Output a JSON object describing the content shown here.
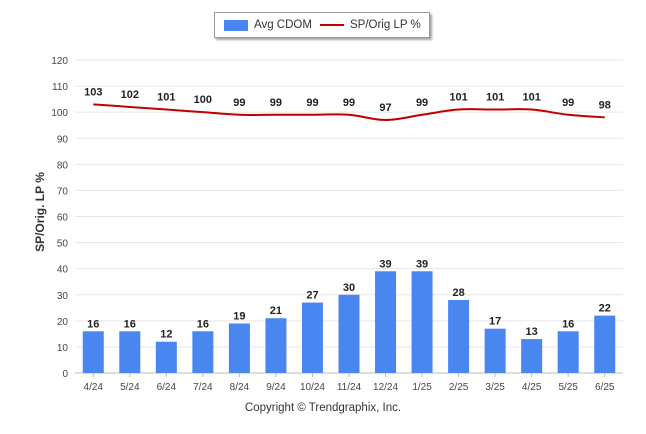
{
  "chart_data": {
    "type": "bar+line",
    "categories": [
      "4/24",
      "5/24",
      "6/24",
      "7/24",
      "8/24",
      "9/24",
      "10/24",
      "11/24",
      "12/24",
      "1/25",
      "2/25",
      "3/25",
      "4/25",
      "5/25",
      "6/25"
    ],
    "series": [
      {
        "name": "Avg CDOM",
        "type": "bar",
        "color": "#4a86f0",
        "values": [
          16,
          16,
          12,
          16,
          19,
          21,
          27,
          30,
          39,
          39,
          28,
          17,
          13,
          16,
          22
        ]
      },
      {
        "name": "SP/Orig LP %",
        "type": "line",
        "color": "#c00000",
        "values": [
          103,
          102,
          101,
          100,
          99,
          99,
          99,
          99,
          97,
          99,
          101,
          101,
          101,
          99,
          98
        ]
      }
    ],
    "ylabel": "SP/Orig. LP %",
    "ylim": [
      0,
      120
    ],
    "yticks": [
      "0",
      "10",
      "20",
      "30",
      "40",
      "50",
      "60",
      "70",
      "80",
      "90",
      "100",
      "110",
      "120"
    ],
    "grid": true,
    "legend": "top-center"
  },
  "legend": {
    "bar_label": "Avg CDOM",
    "line_label": "SP/Orig LP %"
  },
  "footer": "Copyright © Trendgraphix, Inc."
}
